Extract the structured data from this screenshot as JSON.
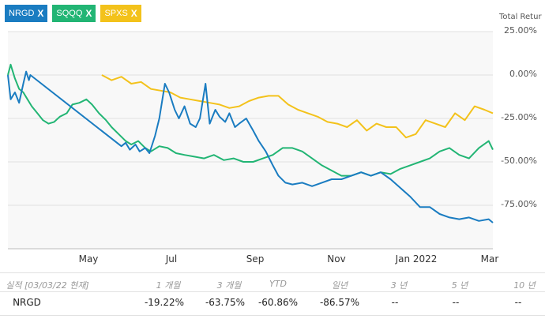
{
  "tags": [
    {
      "label": "NRGD",
      "color": "#1a7cc1"
    },
    {
      "label": "SQQQ",
      "color": "#22b574"
    },
    {
      "label": "SPXS",
      "color": "#f3c21b"
    }
  ],
  "close_glyph": "X",
  "y_axis_title": "Total Retur",
  "y_ticks": [
    "25.00%",
    "0.00%",
    "-25.00%",
    "-50.00%",
    "-75.00%"
  ],
  "x_ticks": [
    "May",
    "Jul",
    "Sep",
    "Nov",
    "Jan 2022",
    "Mar"
  ],
  "chart_data": {
    "type": "line",
    "y_axis_title": "Total Retur",
    "ylim": [
      -100,
      25
    ],
    "y_ticks": [
      25,
      0,
      -25,
      -50,
      -75
    ],
    "x_ticks": [
      "May",
      "Jul",
      "Sep",
      "Nov",
      "Jan 2022",
      "Mar"
    ],
    "xlim": [
      "2021-03-22",
      "2022-03-03"
    ],
    "grid": true,
    "series": [
      {
        "name": "NRGD",
        "color": "#1a7cc1",
        "x": [
          "2021-03-22",
          "2021-03-24",
          "2021-03-27",
          "2021-03-30",
          "2021-04-02",
          "2021-04-04",
          "2021-04-06",
          "2021-04-07",
          "2021-06-11",
          "2021-06-14",
          "2021-06-17",
          "2021-06-21",
          "2021-06-24",
          "2021-06-28",
          "2021-07-01",
          "2021-07-05",
          "2021-07-08",
          "2021-07-12",
          "2021-07-15",
          "2021-07-19",
          "2021-07-22",
          "2021-07-26",
          "2021-07-30",
          "2021-08-03",
          "2021-08-06",
          "2021-08-10",
          "2021-08-13",
          "2021-08-17",
          "2021-08-20",
          "2021-08-24",
          "2021-08-27",
          "2021-08-31",
          "2021-09-03",
          "2021-09-08",
          "2021-09-13",
          "2021-09-17",
          "2021-09-22",
          "2021-09-27",
          "2021-10-01",
          "2021-10-06",
          "2021-10-11",
          "2021-10-18",
          "2021-10-25",
          "2021-11-01",
          "2021-11-08",
          "2021-11-15",
          "2021-11-22",
          "2021-11-29",
          "2021-12-06",
          "2021-12-13",
          "2021-12-20",
          "2021-12-27",
          "2022-01-03",
          "2022-01-10",
          "2022-01-17",
          "2022-01-24",
          "2022-01-31",
          "2022-02-07",
          "2022-02-14",
          "2022-02-21",
          "2022-02-28",
          "2022-03-03"
        ],
        "y": [
          0,
          -14,
          -10,
          -16,
          -5,
          2,
          -3,
          0,
          -41,
          -39,
          -43,
          -40,
          -44,
          -42,
          -45,
          -35,
          -25,
          -5,
          -10,
          -20,
          -25,
          -18,
          -28,
          -30,
          -25,
          -5,
          -28,
          -20,
          -24,
          -27,
          -22,
          -30,
          -28,
          -25,
          -32,
          -38,
          -44,
          -52,
          -58,
          -62,
          -63,
          -62,
          -64,
          -62,
          -60,
          -60,
          -58,
          -56,
          -58,
          -56,
          -60,
          -65,
          -70,
          -76,
          -76,
          -80,
          -82,
          -83,
          -82,
          -84,
          -83,
          -85
        ]
      },
      {
        "name": "SQQQ",
        "color": "#22b574",
        "x": [
          "2021-03-22",
          "2021-03-24",
          "2021-03-27",
          "2021-03-30",
          "2021-04-02",
          "2021-04-05",
          "2021-04-08",
          "2021-04-12",
          "2021-04-16",
          "2021-04-20",
          "2021-04-24",
          "2021-04-28",
          "2021-05-03",
          "2021-05-07",
          "2021-05-12",
          "2021-05-17",
          "2021-05-21",
          "2021-05-26",
          "2021-05-31",
          "2021-06-04",
          "2021-06-09",
          "2021-06-14",
          "2021-06-18",
          "2021-06-23",
          "2021-06-28",
          "2021-07-02",
          "2021-07-08",
          "2021-07-14",
          "2021-07-20",
          "2021-07-26",
          "2021-08-02",
          "2021-08-09",
          "2021-08-16",
          "2021-08-23",
          "2021-08-30",
          "2021-09-06",
          "2021-09-13",
          "2021-09-20",
          "2021-09-27",
          "2021-10-04",
          "2021-10-11",
          "2021-10-18",
          "2021-10-25",
          "2021-11-01",
          "2021-11-08",
          "2021-11-15",
          "2021-11-22",
          "2021-11-29",
          "2021-12-06",
          "2021-12-13",
          "2021-12-20",
          "2021-12-27",
          "2022-01-03",
          "2022-01-10",
          "2022-01-17",
          "2022-01-24",
          "2022-01-31",
          "2022-02-07",
          "2022-02-14",
          "2022-02-21",
          "2022-02-28",
          "2022-03-03"
        ],
        "y": [
          0,
          6,
          -2,
          -8,
          -10,
          -14,
          -18,
          -22,
          -26,
          -28,
          -27,
          -24,
          -22,
          -17,
          -16,
          -14,
          -17,
          -22,
          -26,
          -30,
          -34,
          -38,
          -40,
          -38,
          -42,
          -44,
          -41,
          -42,
          -45,
          -46,
          -47,
          -48,
          -46,
          -49,
          -48,
          -50,
          -50,
          -48,
          -46,
          -42,
          -42,
          -44,
          -48,
          -52,
          -55,
          -58,
          -58,
          -56,
          -58,
          -56,
          -57,
          -54,
          -52,
          -50,
          -48,
          -44,
          -42,
          -46,
          -48,
          -42,
          -38,
          -43
        ]
      },
      {
        "name": "SPXS",
        "color": "#f3c21b",
        "x": [
          "2021-05-28",
          "2021-06-04",
          "2021-06-11",
          "2021-06-18",
          "2021-06-25",
          "2021-07-02",
          "2021-07-09",
          "2021-07-16",
          "2021-07-23",
          "2021-07-30",
          "2021-08-06",
          "2021-08-13",
          "2021-08-20",
          "2021-08-27",
          "2021-09-03",
          "2021-09-10",
          "2021-09-17",
          "2021-09-24",
          "2021-10-01",
          "2021-10-08",
          "2021-10-15",
          "2021-10-22",
          "2021-10-29",
          "2021-11-05",
          "2021-11-12",
          "2021-11-19",
          "2021-11-26",
          "2021-12-03",
          "2021-12-10",
          "2021-12-17",
          "2021-12-24",
          "2021-12-31",
          "2022-01-07",
          "2022-01-14",
          "2022-01-21",
          "2022-01-28",
          "2022-02-04",
          "2022-02-11",
          "2022-02-18",
          "2022-02-25",
          "2022-03-03"
        ],
        "y": [
          0,
          -3,
          -1,
          -5,
          -4,
          -8,
          -9,
          -10,
          -13,
          -14,
          -15,
          -16,
          -17,
          -19,
          -18,
          -15,
          -13,
          -12,
          -12,
          -17,
          -20,
          -22,
          -24,
          -27,
          -28,
          -30,
          -26,
          -32,
          -28,
          -30,
          -30,
          -36,
          -34,
          -26,
          -28,
          -30,
          -22,
          -26,
          -18,
          -20,
          -22
        ]
      }
    ]
  },
  "performance": {
    "header_label": "실적 [03/03/22 현재]",
    "columns": [
      "1 개월",
      "3 개월",
      "YTD",
      "일년",
      "3 년",
      "5 년",
      "10 년"
    ],
    "rows": [
      {
        "name": "NRGD",
        "values": [
          "-19.22%",
          "-63.75%",
          "-60.86%",
          "-86.57%",
          "--",
          "--",
          "--"
        ]
      }
    ]
  }
}
